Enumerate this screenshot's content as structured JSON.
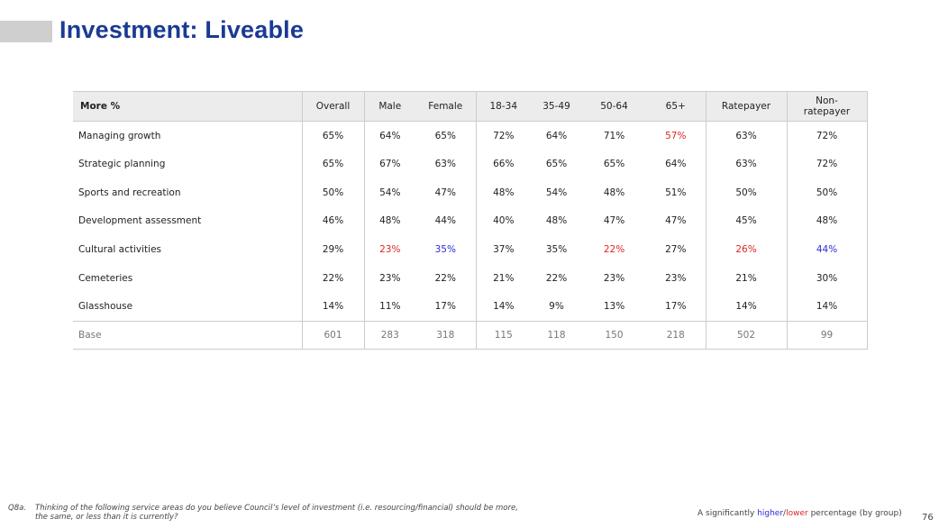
{
  "slide": {
    "title": "Investment: Liveable",
    "page_number": "76"
  },
  "table": {
    "row_header": "More %",
    "columns": [
      "Overall",
      "Male",
      "Female",
      "18-34",
      "35-49",
      "50-64",
      "65+",
      "Ratepayer",
      "Non-\nratepayer"
    ],
    "rows": [
      {
        "label": "Managing growth",
        "values": [
          "65%",
          "64%",
          "65%",
          "72%",
          "64%",
          "71%",
          "57%",
          "63%",
          "72%"
        ]
      },
      {
        "label": "Strategic planning",
        "values": [
          "65%",
          "67%",
          "63%",
          "66%",
          "65%",
          "65%",
          "64%",
          "63%",
          "72%"
        ]
      },
      {
        "label": "Sports and recreation",
        "values": [
          "50%",
          "54%",
          "47%",
          "48%",
          "54%",
          "48%",
          "51%",
          "50%",
          "50%"
        ]
      },
      {
        "label": "Development assessment",
        "values": [
          "46%",
          "48%",
          "44%",
          "40%",
          "48%",
          "47%",
          "47%",
          "45%",
          "48%"
        ]
      },
      {
        "label": "Cultural activities",
        "values": [
          "29%",
          "23%",
          "35%",
          "37%",
          "35%",
          "22%",
          "27%",
          "26%",
          "44%"
        ]
      },
      {
        "label": "Cemeteries",
        "values": [
          "22%",
          "23%",
          "22%",
          "21%",
          "22%",
          "23%",
          "23%",
          "21%",
          "30%"
        ]
      },
      {
        "label": "Glasshouse",
        "values": [
          "14%",
          "11%",
          "17%",
          "14%",
          "9%",
          "13%",
          "17%",
          "14%",
          "14%"
        ]
      }
    ],
    "base": {
      "label": "Base",
      "values": [
        "601",
        "283",
        "318",
        "115",
        "118",
        "150",
        "218",
        "502",
        "99"
      ]
    }
  },
  "footer": {
    "question_number": "Q8a.",
    "question_line1": "Thinking of the following service areas do you believe Council’s level of investment (i.e. resourcing/financial) should be more,",
    "question_line2": "the same, or less than it is currently?",
    "legend_prefix": "A significantly ",
    "legend_higher": "higher",
    "legend_sep": "/",
    "legend_lower": "lower",
    "legend_suffix": " percentage (by group)"
  },
  "colors": {
    "title": "#1b3a93",
    "higher": "#2b2bd6",
    "lower": "#e02424",
    "header_bg": "#ececec"
  }
}
